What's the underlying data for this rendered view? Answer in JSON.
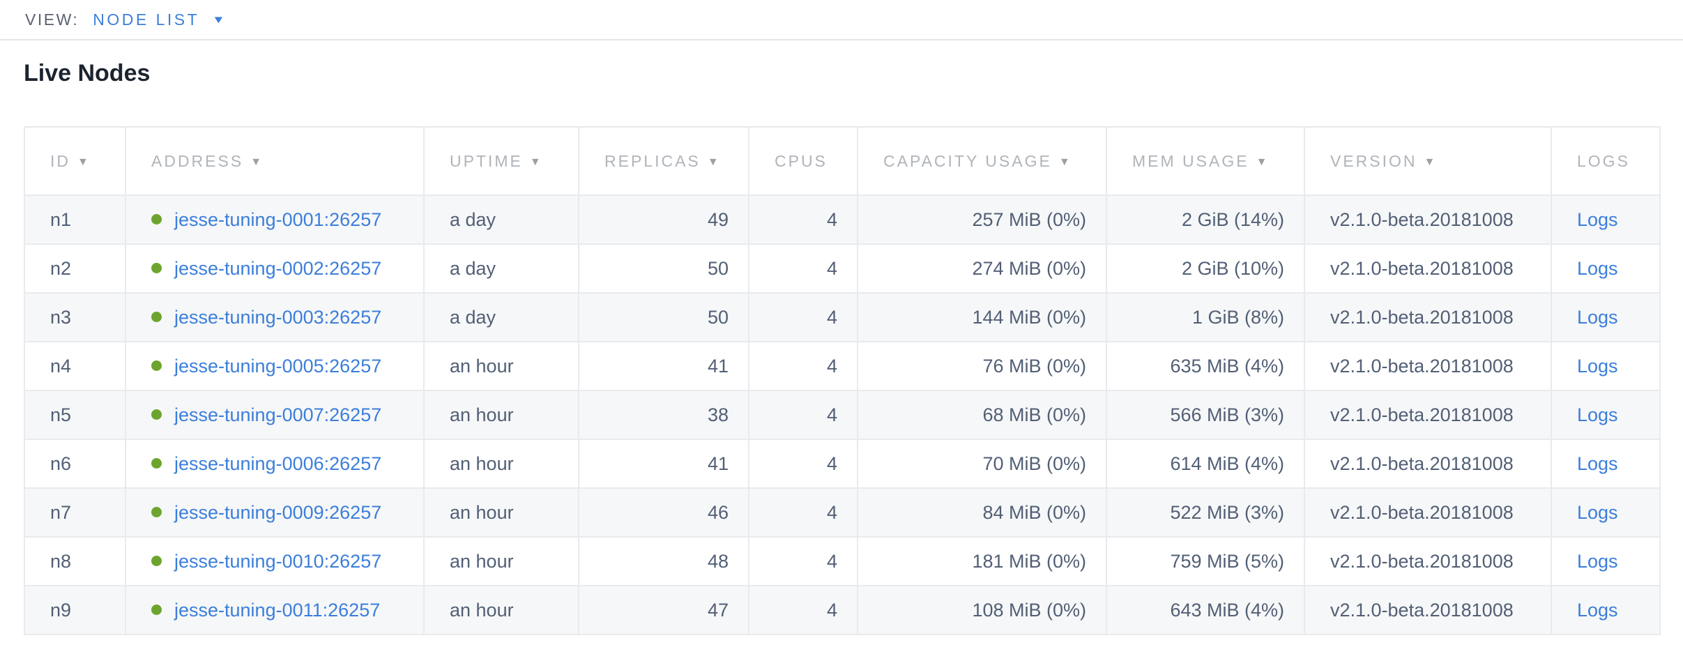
{
  "view_bar": {
    "label": "VIEW:",
    "selected": "NODE LIST"
  },
  "page": {
    "title": "Live Nodes"
  },
  "icons": {
    "sort_desc": "▼",
    "dropdown_caret": "▼",
    "status_dot": "green-dot"
  },
  "colors": {
    "link_blue": "#3b7edb",
    "status_green": "#6da42e",
    "header_gray": "#b0b4b9",
    "cell_text": "#525f75",
    "row_stripe": "#f6f7f8",
    "border": "#e8eaed"
  },
  "table": {
    "columns": [
      {
        "key": "id",
        "label": "ID",
        "sortable": true,
        "align": "left"
      },
      {
        "key": "address",
        "label": "ADDRESS",
        "sortable": true,
        "align": "left"
      },
      {
        "key": "uptime",
        "label": "UPTIME",
        "sortable": true,
        "align": "left"
      },
      {
        "key": "replicas",
        "label": "REPLICAS",
        "sortable": true,
        "align": "right"
      },
      {
        "key": "cpus",
        "label": "CPUS",
        "sortable": false,
        "align": "right"
      },
      {
        "key": "capacity",
        "label": "CAPACITY USAGE",
        "sortable": true,
        "align": "right"
      },
      {
        "key": "mem",
        "label": "MEM USAGE",
        "sortable": true,
        "align": "right"
      },
      {
        "key": "version",
        "label": "VERSION",
        "sortable": true,
        "align": "left"
      },
      {
        "key": "logs",
        "label": "LOGS",
        "sortable": false,
        "align": "left"
      }
    ],
    "rows": [
      {
        "id": "n1",
        "status": "live",
        "address": "jesse-tuning-0001:26257",
        "uptime": "a day",
        "replicas": "49",
        "cpus": "4",
        "capacity": "257 MiB (0%)",
        "mem": "2 GiB (14%)",
        "version": "v2.1.0-beta.20181008",
        "logs": "Logs"
      },
      {
        "id": "n2",
        "status": "live",
        "address": "jesse-tuning-0002:26257",
        "uptime": "a day",
        "replicas": "50",
        "cpus": "4",
        "capacity": "274 MiB (0%)",
        "mem": "2 GiB (10%)",
        "version": "v2.1.0-beta.20181008",
        "logs": "Logs"
      },
      {
        "id": "n3",
        "status": "live",
        "address": "jesse-tuning-0003:26257",
        "uptime": "a day",
        "replicas": "50",
        "cpus": "4",
        "capacity": "144 MiB (0%)",
        "mem": "1 GiB (8%)",
        "version": "v2.1.0-beta.20181008",
        "logs": "Logs"
      },
      {
        "id": "n4",
        "status": "live",
        "address": "jesse-tuning-0005:26257",
        "uptime": "an hour",
        "replicas": "41",
        "cpus": "4",
        "capacity": "76 MiB (0%)",
        "mem": "635 MiB (4%)",
        "version": "v2.1.0-beta.20181008",
        "logs": "Logs"
      },
      {
        "id": "n5",
        "status": "live",
        "address": "jesse-tuning-0007:26257",
        "uptime": "an hour",
        "replicas": "38",
        "cpus": "4",
        "capacity": "68 MiB (0%)",
        "mem": "566 MiB (3%)",
        "version": "v2.1.0-beta.20181008",
        "logs": "Logs"
      },
      {
        "id": "n6",
        "status": "live",
        "address": "jesse-tuning-0006:26257",
        "uptime": "an hour",
        "replicas": "41",
        "cpus": "4",
        "capacity": "70 MiB (0%)",
        "mem": "614 MiB (4%)",
        "version": "v2.1.0-beta.20181008",
        "logs": "Logs"
      },
      {
        "id": "n7",
        "status": "live",
        "address": "jesse-tuning-0009:26257",
        "uptime": "an hour",
        "replicas": "46",
        "cpus": "4",
        "capacity": "84 MiB (0%)",
        "mem": "522 MiB (3%)",
        "version": "v2.1.0-beta.20181008",
        "logs": "Logs"
      },
      {
        "id": "n8",
        "status": "live",
        "address": "jesse-tuning-0010:26257",
        "uptime": "an hour",
        "replicas": "48",
        "cpus": "4",
        "capacity": "181 MiB (0%)",
        "mem": "759 MiB (5%)",
        "version": "v2.1.0-beta.20181008",
        "logs": "Logs"
      },
      {
        "id": "n9",
        "status": "live",
        "address": "jesse-tuning-0011:26257",
        "uptime": "an hour",
        "replicas": "47",
        "cpus": "4",
        "capacity": "108 MiB (0%)",
        "mem": "643 MiB (4%)",
        "version": "v2.1.0-beta.20181008",
        "logs": "Logs"
      }
    ]
  }
}
